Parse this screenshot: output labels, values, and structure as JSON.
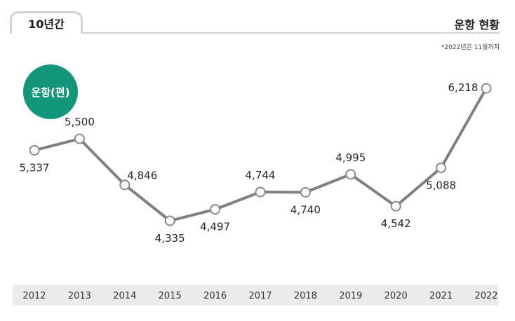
{
  "header": {
    "tab_label": "10년간",
    "title": "운항 현황",
    "note": "*2022년은 11월까지"
  },
  "badge": {
    "label": "운항(편)"
  },
  "chart_data": {
    "type": "line",
    "categories": [
      "2012",
      "2013",
      "2014",
      "2015",
      "2016",
      "2017",
      "2018",
      "2019",
      "2020",
      "2021",
      "2022"
    ],
    "values": [
      5337,
      5500,
      4846,
      4335,
      4497,
      4744,
      4740,
      4995,
      4542,
      5088,
      6218
    ],
    "data_labels": [
      "5,337",
      "5,500",
      "4,846",
      "4,335",
      "4,497",
      "4,744",
      "4,740",
      "4,995",
      "4,542",
      "5,088",
      "6,218"
    ],
    "label_position": [
      "below",
      "above",
      "right",
      "below",
      "below",
      "above",
      "below",
      "above",
      "below",
      "below",
      "left"
    ],
    "colors": {
      "line": "#808080",
      "marker_fill": "#ffffff",
      "marker_stroke": "#8a8a8a",
      "badge": "#14967a"
    },
    "grid": false,
    "legend": "none"
  }
}
